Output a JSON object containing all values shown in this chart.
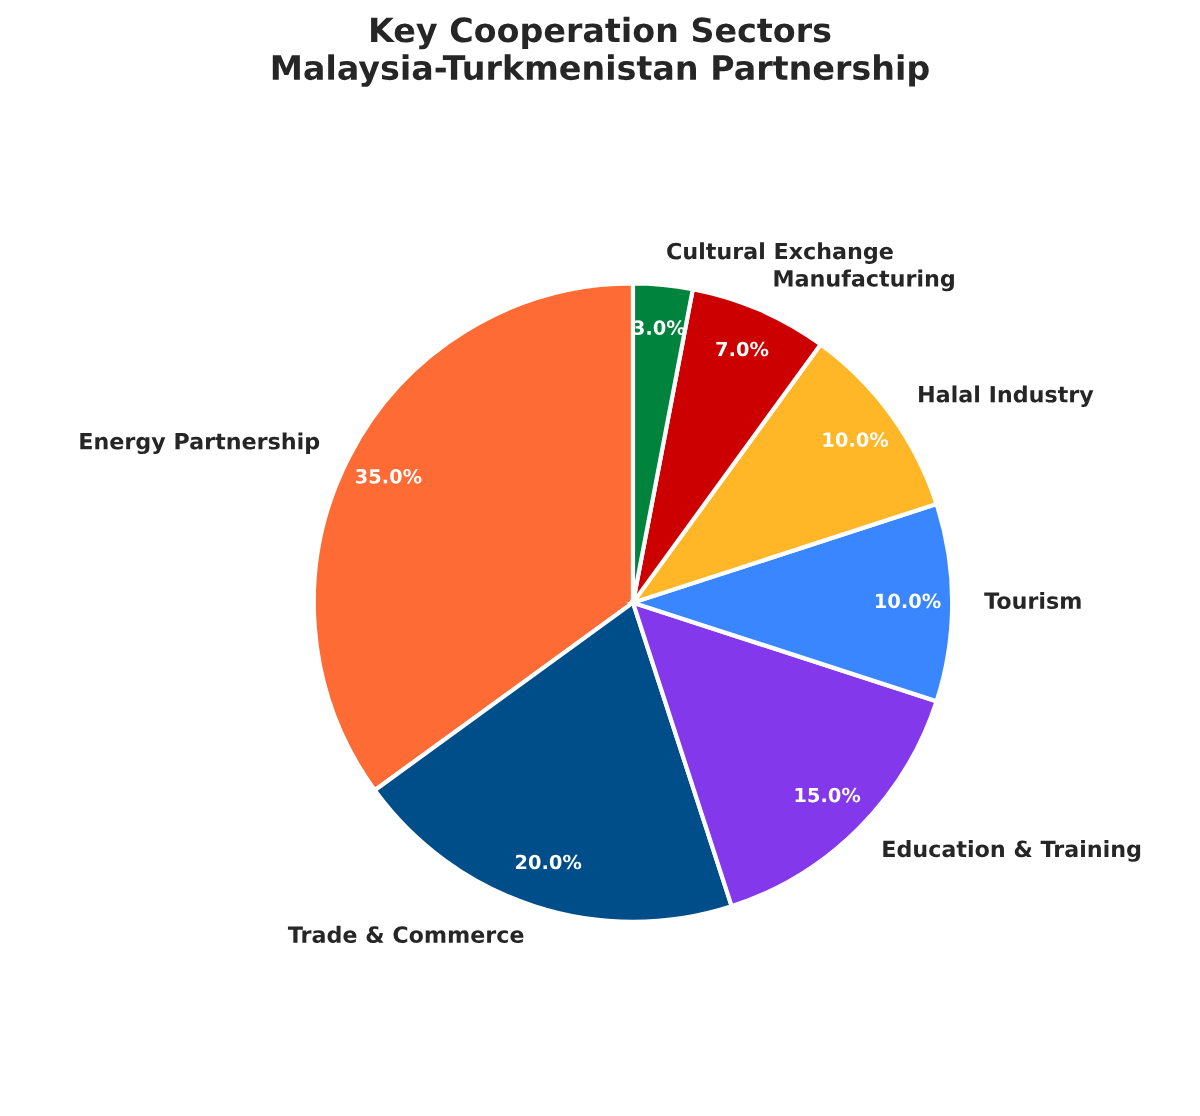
{
  "chart_data": {
    "type": "pie",
    "title": "Key Cooperation Sectors\nMalaysia-Turkmenistan Partnership",
    "categories": [
      "Energy Partnership",
      "Trade & Commerce",
      "Education & Training",
      "Tourism",
      "Halal Industry",
      "Manufacturing",
      "Cultural Exchange"
    ],
    "values": [
      35,
      20,
      15,
      10,
      10,
      7,
      3
    ],
    "value_labels": [
      "35.0%",
      "20.0%",
      "15.0%",
      "10.0%",
      "10.0%",
      "7.0%",
      "3.0%"
    ],
    "colors": [
      "#ff6b35",
      "#004e89",
      "#8338ec",
      "#3a86ff",
      "#ffb627",
      "#cc0000",
      "#00843d"
    ],
    "legend": false
  }
}
